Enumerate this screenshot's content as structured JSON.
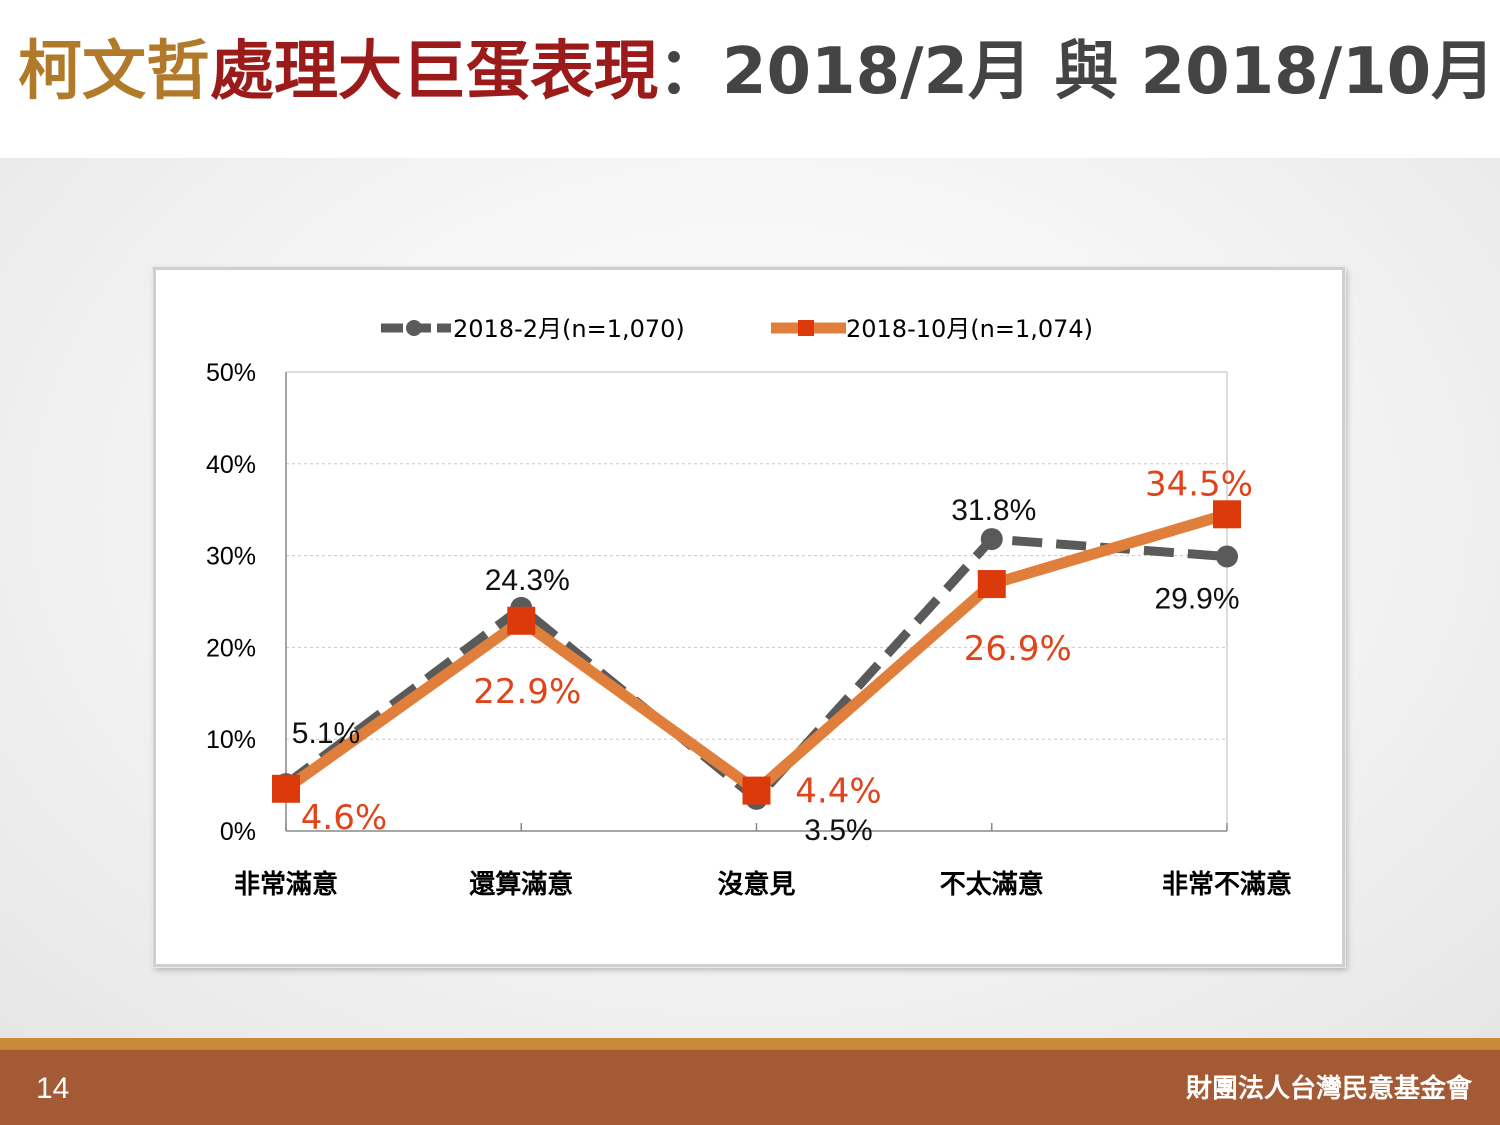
{
  "header": {
    "title_part1": "柯文哲",
    "title_part2": "處理大巨蛋表現",
    "title_part3": "：2018/2月 與 2018/10月"
  },
  "footer": {
    "page_number": "14",
    "organization": "財團法人台灣民意基金會"
  },
  "colors": {
    "series1": "#5a5a5a",
    "series2_line": "#e07f3c",
    "series2_marker": "#dd3a0c",
    "series2_label": "#e0441a"
  },
  "chart_data": {
    "type": "line",
    "categories": [
      "非常滿意",
      "還算滿意",
      "沒意見",
      "不太滿意",
      "非常不滿意"
    ],
    "series": [
      {
        "name": "2018-2月(n=1,070)",
        "values": [
          5.1,
          24.3,
          3.5,
          31.8,
          29.9
        ],
        "data_labels": [
          "5.1%",
          "24.3%",
          "3.5%",
          "31.8%",
          "29.9%"
        ],
        "line_style": "dashed",
        "marker": "circle"
      },
      {
        "name": "2018-10月(n=1,074)",
        "values": [
          4.6,
          22.9,
          4.4,
          26.9,
          34.5
        ],
        "data_labels": [
          "4.6%",
          "22.9%",
          "4.4%",
          "26.9%",
          "34.5%"
        ],
        "line_style": "solid",
        "marker": "square"
      }
    ],
    "yticks": [
      "0%",
      "10%",
      "20%",
      "30%",
      "40%",
      "50%"
    ],
    "ylim": [
      0,
      50
    ],
    "grid": true,
    "legend": "top"
  }
}
